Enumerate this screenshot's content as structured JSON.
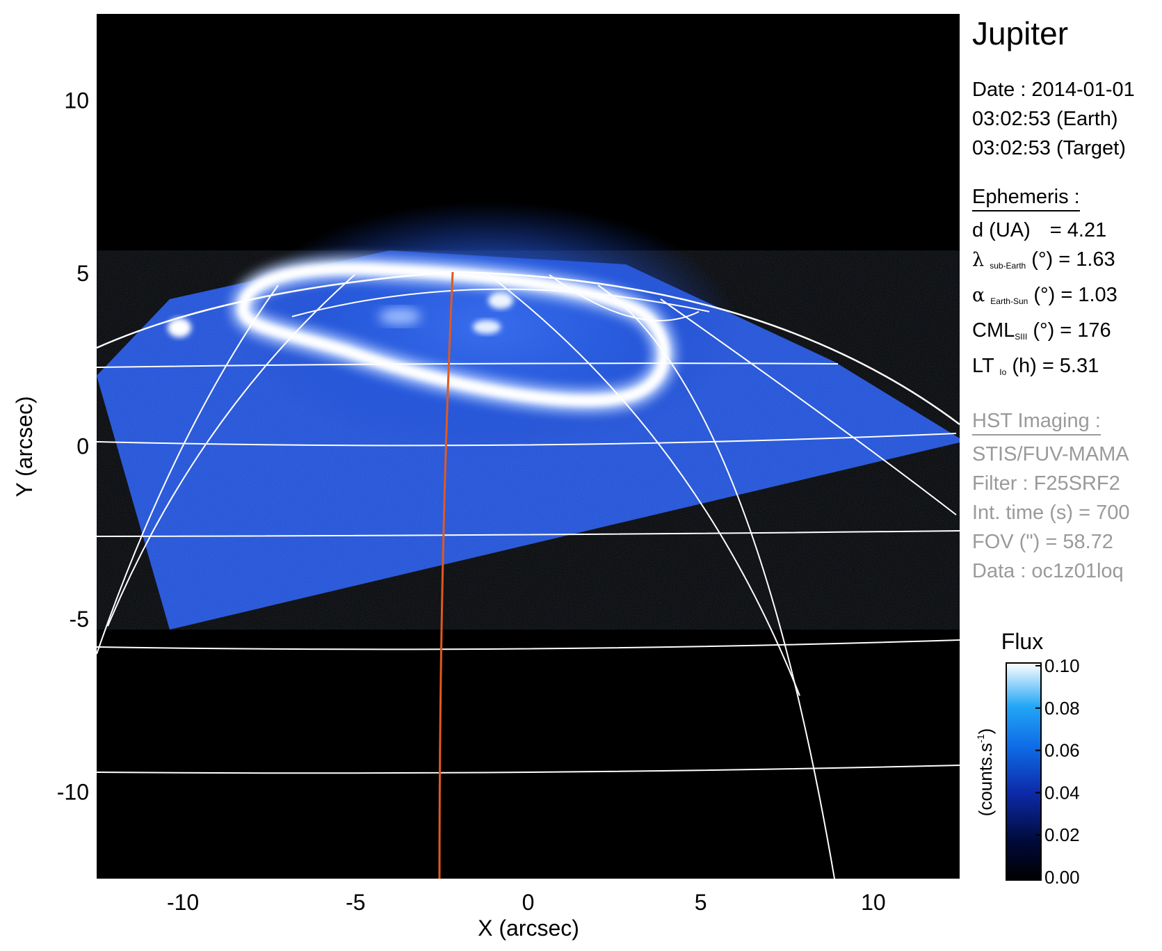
{
  "chart_data": {
    "type": "image",
    "title": "Jupiter",
    "xlabel": "X (arcsec)",
    "ylabel": "Y (arcsec)",
    "xlim": [
      -12.5,
      12.5
    ],
    "ylim": [
      -12.5,
      12.5
    ],
    "xticks": [
      -10,
      -5,
      0,
      5,
      10
    ],
    "yticks": [
      10,
      5,
      0,
      -5,
      -10
    ],
    "xtick_labels": [
      "-10",
      "-5",
      "0",
      "5",
      "10"
    ],
    "ytick_labels": [
      "10",
      "5",
      "0",
      "-5",
      "-10"
    ],
    "colorbar": {
      "title": "Flux",
      "label": "(counts.s",
      "label_sup": "-1",
      "label_close": ")",
      "range": [
        0.0,
        0.1
      ],
      "ticks": [
        0.1,
        0.08,
        0.06,
        0.04,
        0.02,
        0.0
      ],
      "tick_labels": [
        "0.10",
        "0.08",
        "0.06",
        "0.04",
        "0.02",
        "0.00"
      ]
    },
    "info": {
      "date_line": "Date : 2014-01-01",
      "earth_line": "03:02:53 (Earth)",
      "target_line": "03:02:53 (Target)",
      "ephemeris_header": "Ephemeris :",
      "d_label": "d (UA)",
      "d_value": "= 4.21",
      "lambda_symbol": "λ",
      "lambda_sub": "sub-Earth",
      "lambda_rest": "(°) = 1.63",
      "alpha_symbol": "α",
      "alpha_sub": "Earth-Sun",
      "alpha_rest": "(°) = 1.03",
      "cml_symbol": "CML",
      "cml_sub": "SIII",
      "cml_rest": "(°) = 176",
      "lt_symbol": "LT",
      "lt_sub": "Io",
      "lt_rest": "(h) = 5.31",
      "hst_header": "HST Imaging :",
      "instrument": "STIS/FUV-MAMA",
      "filter": "Filter : F25SRF2",
      "int_time": "Int. time (s) = 700",
      "fov": "FOV (\") = 58.72",
      "data_id": "Data : oc1z01loq"
    },
    "grid": true,
    "colors": {
      "background": "#000000",
      "emission": "#1c52e0",
      "grid": "#ffffff",
      "meridian": "#e05a1e"
    }
  }
}
